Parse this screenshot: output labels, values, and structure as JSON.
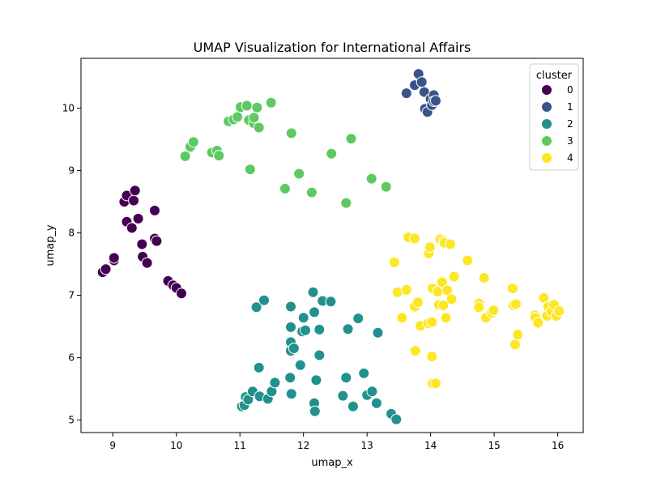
{
  "chart_data": {
    "type": "scatter",
    "title": "UMAP Visualization for International Affairs",
    "xlabel": "umap_x",
    "ylabel": "umap_y",
    "xlim": [
      8.5,
      16.4
    ],
    "ylim": [
      4.8,
      10.8
    ],
    "x_ticks": [
      9,
      10,
      11,
      12,
      13,
      14,
      15,
      16
    ],
    "y_ticks": [
      5,
      6,
      7,
      8,
      9,
      10
    ],
    "grid": false,
    "legend": {
      "title": "cluster",
      "placement": "top-right"
    },
    "series": [
      {
        "name": "0",
        "color": "#440154",
        "points": [
          [
            8.84,
            7.37
          ],
          [
            8.89,
            7.42
          ],
          [
            9.02,
            7.56
          ],
          [
            9.02,
            7.6
          ],
          [
            9.18,
            8.5
          ],
          [
            9.22,
            8.6
          ],
          [
            9.22,
            8.18
          ],
          [
            9.3,
            8.08
          ],
          [
            9.33,
            8.52
          ],
          [
            9.35,
            8.68
          ],
          [
            9.4,
            8.23
          ],
          [
            9.46,
            7.82
          ],
          [
            9.47,
            7.62
          ],
          [
            9.54,
            7.52
          ],
          [
            9.66,
            8.36
          ],
          [
            9.66,
            7.91
          ],
          [
            9.69,
            7.87
          ],
          [
            9.87,
            7.23
          ],
          [
            9.95,
            7.16
          ],
          [
            10.0,
            7.12
          ],
          [
            10.08,
            7.03
          ]
        ]
      },
      {
        "name": "1",
        "color": "#3b528b",
        "points": [
          [
            13.62,
            10.24
          ],
          [
            13.75,
            10.37
          ],
          [
            13.81,
            10.55
          ],
          [
            13.86,
            10.42
          ],
          [
            13.9,
            10.26
          ],
          [
            13.91,
            9.99
          ],
          [
            13.95,
            9.94
          ],
          [
            14.0,
            10.15
          ],
          [
            14.02,
            10.05
          ],
          [
            14.05,
            10.21
          ],
          [
            14.05,
            10.11
          ],
          [
            14.08,
            10.12
          ]
        ]
      },
      {
        "name": "2",
        "color": "#21918c",
        "points": [
          [
            11.03,
            5.22
          ],
          [
            11.07,
            5.24
          ],
          [
            11.09,
            5.37
          ],
          [
            11.13,
            5.33
          ],
          [
            11.2,
            5.46
          ],
          [
            11.26,
            6.81
          ],
          [
            11.3,
            5.84
          ],
          [
            11.31,
            5.38
          ],
          [
            11.38,
            6.92
          ],
          [
            11.44,
            5.34
          ],
          [
            11.5,
            5.46
          ],
          [
            11.55,
            5.6
          ],
          [
            11.79,
            5.68
          ],
          [
            11.8,
            6.82
          ],
          [
            11.8,
            6.49
          ],
          [
            11.8,
            6.25
          ],
          [
            11.8,
            6.11
          ],
          [
            11.81,
            5.42
          ],
          [
            11.85,
            6.15
          ],
          [
            11.95,
            5.88
          ],
          [
            11.98,
            6.42
          ],
          [
            12.0,
            6.64
          ],
          [
            12.03,
            6.44
          ],
          [
            12.15,
            7.05
          ],
          [
            12.17,
            6.73
          ],
          [
            12.17,
            5.27
          ],
          [
            12.18,
            5.14
          ],
          [
            12.2,
            5.64
          ],
          [
            12.25,
            6.45
          ],
          [
            12.25,
            6.04
          ],
          [
            12.3,
            6.91
          ],
          [
            12.43,
            6.9
          ],
          [
            12.62,
            5.39
          ],
          [
            12.67,
            5.68
          ],
          [
            12.7,
            6.46
          ],
          [
            12.78,
            5.22
          ],
          [
            12.86,
            6.63
          ],
          [
            12.95,
            5.75
          ],
          [
            13.0,
            5.4
          ],
          [
            13.08,
            5.46
          ],
          [
            13.15,
            5.27
          ],
          [
            13.17,
            6.4
          ],
          [
            13.38,
            5.1
          ],
          [
            13.46,
            5.01
          ]
        ]
      },
      {
        "name": "3",
        "color": "#5ec962",
        "points": [
          [
            10.14,
            9.23
          ],
          [
            10.22,
            9.38
          ],
          [
            10.27,
            9.46
          ],
          [
            10.56,
            9.29
          ],
          [
            10.64,
            9.32
          ],
          [
            10.67,
            9.24
          ],
          [
            10.82,
            9.79
          ],
          [
            10.9,
            9.82
          ],
          [
            10.96,
            9.86
          ],
          [
            11.01,
            10.02
          ],
          [
            11.11,
            10.04
          ],
          [
            11.14,
            9.81
          ],
          [
            11.16,
            9.02
          ],
          [
            11.22,
            9.76
          ],
          [
            11.22,
            9.85
          ],
          [
            11.27,
            10.01
          ],
          [
            11.3,
            9.69
          ],
          [
            11.49,
            10.09
          ],
          [
            11.71,
            8.71
          ],
          [
            11.81,
            9.6
          ],
          [
            11.93,
            8.95
          ],
          [
            12.13,
            8.65
          ],
          [
            12.44,
            9.27
          ],
          [
            12.67,
            8.48
          ],
          [
            12.75,
            9.51
          ],
          [
            13.07,
            8.87
          ],
          [
            13.3,
            8.74
          ]
        ]
      },
      {
        "name": "4",
        "color": "#fde725",
        "points": [
          [
            13.43,
            7.53
          ],
          [
            13.48,
            7.05
          ],
          [
            13.55,
            6.64
          ],
          [
            13.62,
            7.09
          ],
          [
            13.65,
            7.93
          ],
          [
            13.75,
            7.91
          ],
          [
            13.75,
            6.82
          ],
          [
            13.76,
            6.11
          ],
          [
            13.8,
            6.89
          ],
          [
            13.84,
            6.51
          ],
          [
            13.96,
            6.55
          ],
          [
            13.97,
            7.67
          ],
          [
            13.99,
            7.77
          ],
          [
            14.02,
            6.57
          ],
          [
            14.03,
            7.11
          ],
          [
            14.02,
            6.02
          ],
          [
            14.03,
            5.59
          ],
          [
            14.08,
            5.59
          ],
          [
            14.11,
            7.06
          ],
          [
            14.13,
            6.85
          ],
          [
            14.15,
            7.9
          ],
          [
            14.18,
            7.21
          ],
          [
            14.2,
            6.84
          ],
          [
            14.21,
            7.87
          ],
          [
            14.22,
            7.84
          ],
          [
            14.24,
            6.64
          ],
          [
            14.26,
            7.08
          ],
          [
            14.31,
            7.82
          ],
          [
            14.33,
            6.94
          ],
          [
            14.37,
            7.3
          ],
          [
            14.58,
            7.56
          ],
          [
            14.76,
            6.87
          ],
          [
            14.76,
            6.81
          ],
          [
            14.84,
            7.28
          ],
          [
            14.87,
            6.64
          ],
          [
            14.96,
            6.72
          ],
          [
            14.99,
            6.76
          ],
          [
            15.29,
            7.11
          ],
          [
            15.3,
            6.84
          ],
          [
            15.34,
            6.86
          ],
          [
            15.33,
            6.21
          ],
          [
            15.37,
            6.37
          ],
          [
            15.64,
            6.68
          ],
          [
            15.65,
            6.64
          ],
          [
            15.69,
            6.56
          ],
          [
            15.78,
            6.96
          ],
          [
            15.83,
            6.67
          ],
          [
            15.85,
            6.82
          ],
          [
            15.9,
            6.74
          ],
          [
            15.94,
            6.85
          ],
          [
            15.98,
            6.67
          ],
          [
            16.02,
            6.75
          ]
        ]
      }
    ]
  }
}
